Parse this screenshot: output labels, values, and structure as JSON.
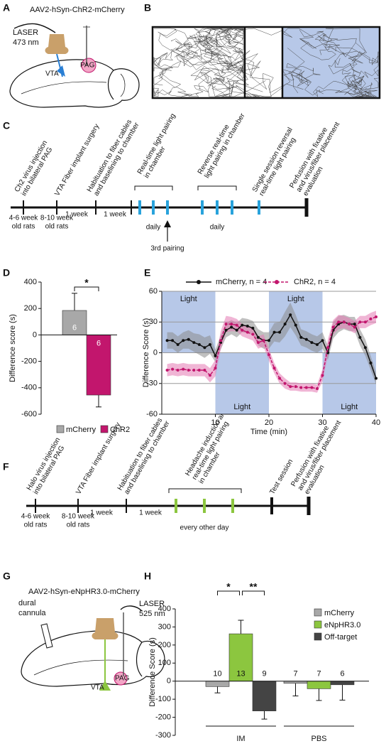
{
  "panels": {
    "labels": [
      "A",
      "B",
      "C",
      "D",
      "E",
      "F",
      "G",
      "H"
    ]
  },
  "panel_a": {
    "construct": "AAV2-hSyn-ChR2-mCherry",
    "laser": [
      "LASER",
      "473 nm"
    ],
    "regions": [
      "VTA",
      "PAG"
    ]
  },
  "timeline_c": {
    "events": [
      [
        "Ch2 virus injection",
        "into bilateral PAG"
      ],
      [
        "VTA Fiber implant surgery"
      ],
      [
        "Habituation to fiber cables",
        "and baselining to chamber"
      ],
      [
        "Real-time light pairing",
        "in chamber"
      ],
      [
        "Reverse real-time",
        "light pairing in chamber"
      ],
      [
        "Single session reversal",
        "real-time light pairing"
      ],
      [
        "Perfusion with fixative",
        "and virus/fiber placement",
        "evaluation"
      ]
    ],
    "ages": [
      [
        "4-6 week",
        "old rats"
      ],
      [
        "8-10 week",
        "old rats"
      ]
    ],
    "intervals": [
      "1 week",
      "1 week"
    ],
    "repeats": [
      "daily",
      "daily"
    ],
    "arrow": "3rd pairing"
  },
  "timeline_f": {
    "events": [
      [
        "Halo virus injection",
        "into bilateral PAG"
      ],
      [
        "VTA Fiber implant surgery"
      ],
      [
        "Habituation to fiber cables",
        "and baselining to chamber"
      ],
      [
        "Headache induction and",
        "real-time light pairing",
        "in chamber"
      ],
      [
        "Test session"
      ],
      [
        "Perfusion with fixative",
        "and virus/fiber placement",
        "evaluation"
      ]
    ],
    "ages": [
      [
        "4-6 week",
        "old rats"
      ],
      [
        "8-10 week",
        "old rats"
      ]
    ],
    "intervals": [
      "1 week",
      "1 week"
    ],
    "repeats": [
      "every other day"
    ]
  },
  "panel_g": {
    "construct": "AAV2-hSyn-eNpHR3.0-mCherry",
    "cannula": [
      "dural",
      "cannula"
    ],
    "laser": [
      "LASER",
      "525 nm"
    ],
    "regions": [
      "VTA",
      "PAG"
    ]
  },
  "chart_data": [
    {
      "type": "bar",
      "ylabel": "Difference score (s)",
      "ylim": [
        -600,
        400
      ],
      "yticks": [
        400,
        200,
        0,
        -200,
        -400,
        -600
      ],
      "annotations": [
        "*"
      ],
      "series": [
        {
          "name": "mCherry",
          "color": "#a8a8a8",
          "values": [
            185
          ],
          "errors": [
            130
          ],
          "n": [
            6
          ]
        },
        {
          "name": "ChR2",
          "color": "#c2166d",
          "values": [
            -455
          ],
          "errors": [
            90
          ],
          "n": [
            6
          ]
        }
      ]
    },
    {
      "type": "line",
      "xlabel": "Time (min)",
      "ylabel": "Difference Score (s)",
      "xlim": [
        0,
        40
      ],
      "ylim": [
        -60,
        60
      ],
      "xticks": [
        10,
        20,
        30,
        40
      ],
      "yticks": [
        60,
        30,
        0,
        -30,
        -60
      ],
      "grid": true,
      "regions": [
        {
          "label": "Light",
          "x": [
            0,
            10
          ],
          "y": [
            0,
            60
          ]
        },
        {
          "label": "Light",
          "x": [
            10,
            20
          ],
          "y": [
            -60,
            0
          ]
        },
        {
          "label": "Light",
          "x": [
            20,
            30
          ],
          "y": [
            0,
            60
          ]
        },
        {
          "label": "Light",
          "x": [
            30,
            40
          ],
          "y": [
            -60,
            0
          ]
        }
      ],
      "x": [
        1,
        2,
        3,
        4,
        5,
        6,
        7,
        8,
        9,
        10,
        11,
        12,
        13,
        14,
        15,
        16,
        17,
        18,
        19,
        20,
        21,
        22,
        23,
        24,
        25,
        26,
        27,
        28,
        29,
        30,
        31,
        32,
        33,
        34,
        35,
        36,
        37,
        38,
        39,
        40
      ],
      "series": [
        {
          "name": "mCherry, n = 4",
          "color": "#111111",
          "band": "#8c8c8c",
          "values": [
            12,
            12,
            8,
            12,
            13,
            10,
            8,
            5,
            8,
            -3,
            10,
            22,
            25,
            22,
            27,
            26,
            24,
            15,
            12,
            12,
            20,
            20,
            28,
            37,
            27,
            15,
            13,
            10,
            8,
            12,
            0,
            22,
            28,
            30,
            28,
            28,
            15,
            5,
            -10,
            -25
          ],
          "errors": [
            8,
            8,
            8,
            8,
            9,
            9,
            10,
            10,
            9,
            6,
            7,
            7,
            7,
            7,
            7,
            7,
            7,
            8,
            8,
            8,
            9,
            10,
            12,
            12,
            10,
            8,
            8,
            8,
            8,
            8,
            7,
            8,
            8,
            7,
            7,
            7,
            8,
            8,
            7,
            6
          ]
        },
        {
          "name": "ChR2, n = 4",
          "color": "#c2166d",
          "band": "#e479b2",
          "values": [
            -17,
            -16,
            -17,
            -16,
            -17,
            -17,
            -17,
            -17,
            -22,
            -15,
            12,
            28,
            28,
            27,
            22,
            20,
            18,
            10,
            12,
            -2,
            -15,
            -25,
            -30,
            -33,
            -33,
            -34,
            -34,
            -34,
            -35,
            -22,
            5,
            25,
            30,
            30,
            28,
            25,
            30,
            30,
            33,
            35
          ],
          "errors": [
            6,
            6,
            6,
            6,
            6,
            6,
            6,
            6,
            7,
            8,
            9,
            8,
            7,
            6,
            6,
            6,
            6,
            6,
            6,
            6,
            5,
            5,
            5,
            4,
            4,
            4,
            4,
            4,
            4,
            6,
            8,
            7,
            7,
            6,
            6,
            6,
            6,
            6,
            6,
            6
          ]
        }
      ]
    },
    {
      "type": "grouped_bar",
      "ylabel": "Difference Score (s)",
      "ylim": [
        -300,
        400
      ],
      "yticks": [
        400,
        300,
        200,
        100,
        0,
        -100,
        -200,
        -300
      ],
      "categories": [
        "IM",
        "PBS"
      ],
      "annotations": [
        "*",
        "**"
      ],
      "series": [
        {
          "name": "mCherry",
          "color": "#a8a8a8",
          "values": [
            -30,
            -12
          ],
          "errors": [
            35,
            70
          ],
          "n": [
            10,
            7
          ]
        },
        {
          "name": "eNpHR3.0",
          "color": "#8cc63f",
          "values": [
            262,
            -42
          ],
          "errors": [
            75,
            65
          ],
          "n": [
            13,
            7
          ]
        },
        {
          "name": "Off-target",
          "color": "#444444",
          "values": [
            -165,
            -20
          ],
          "errors": [
            45,
            85
          ],
          "n": [
            9,
            6
          ]
        }
      ]
    }
  ]
}
